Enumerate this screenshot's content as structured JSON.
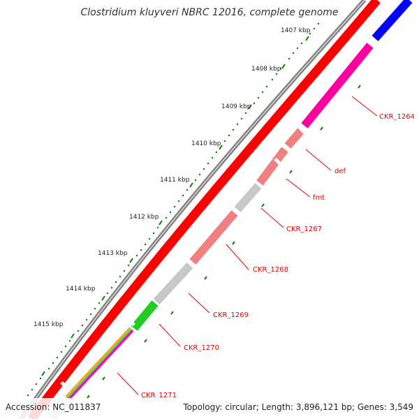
{
  "title": "Clostridium kluyveri NBRC 12016, complete genome",
  "footer": {
    "accession": "Accession: NC_011837",
    "summary": "Topology: circular; Length: 3,896,121 bp; Genes: 3,549"
  },
  "scale_ticks": [
    "1407 kbp",
    "1408 kbp",
    "1409 kbp",
    "1410 kbp",
    "1411 kbp",
    "1412 kbp",
    "1413 kbp",
    "1414 kbp",
    "1415 kbp"
  ],
  "genes": [
    "CKR_1264",
    "def",
    "fmt",
    "CKR_1267",
    "CKR_1268",
    "CKR_1269",
    "CKR_1270",
    "CKR_1271"
  ],
  "colors": {
    "forward_cds": "#ff0000",
    "backbone": "#808080",
    "ticks": "#008000",
    "label": "#e00000",
    "blue_feature": "#0000ff",
    "magenta_feature": "#ff00aa",
    "salmon_feature": "#f08080",
    "grey_feature": "#c8c8c8",
    "green_feature": "#22cc22"
  }
}
